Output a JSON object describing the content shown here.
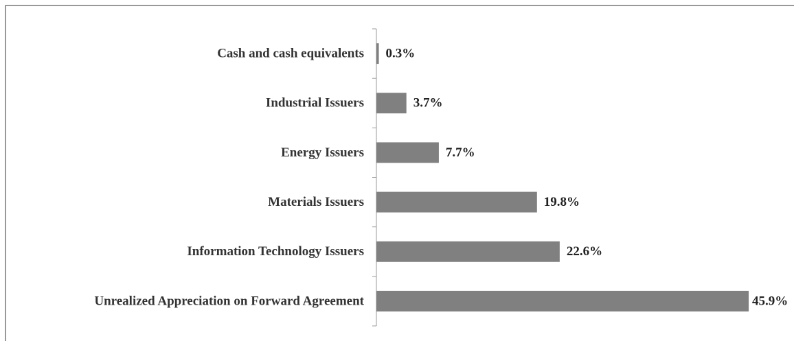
{
  "chart_data": {
    "type": "hbar",
    "categories": [
      "Cash and cash equivalents",
      "Industrial Issuers",
      "Energy Issuers",
      "Materials Issuers",
      "Information Technology Issuers",
      "Unrealized Appreciation on Forward Agreement"
    ],
    "values": [
      0.3,
      3.7,
      7.7,
      19.8,
      22.6,
      45.9
    ],
    "value_labels": [
      "0.3%",
      "3.7%",
      "7.7%",
      "19.8%",
      "22.6%",
      "45.9%"
    ],
    "color": "#808080"
  }
}
